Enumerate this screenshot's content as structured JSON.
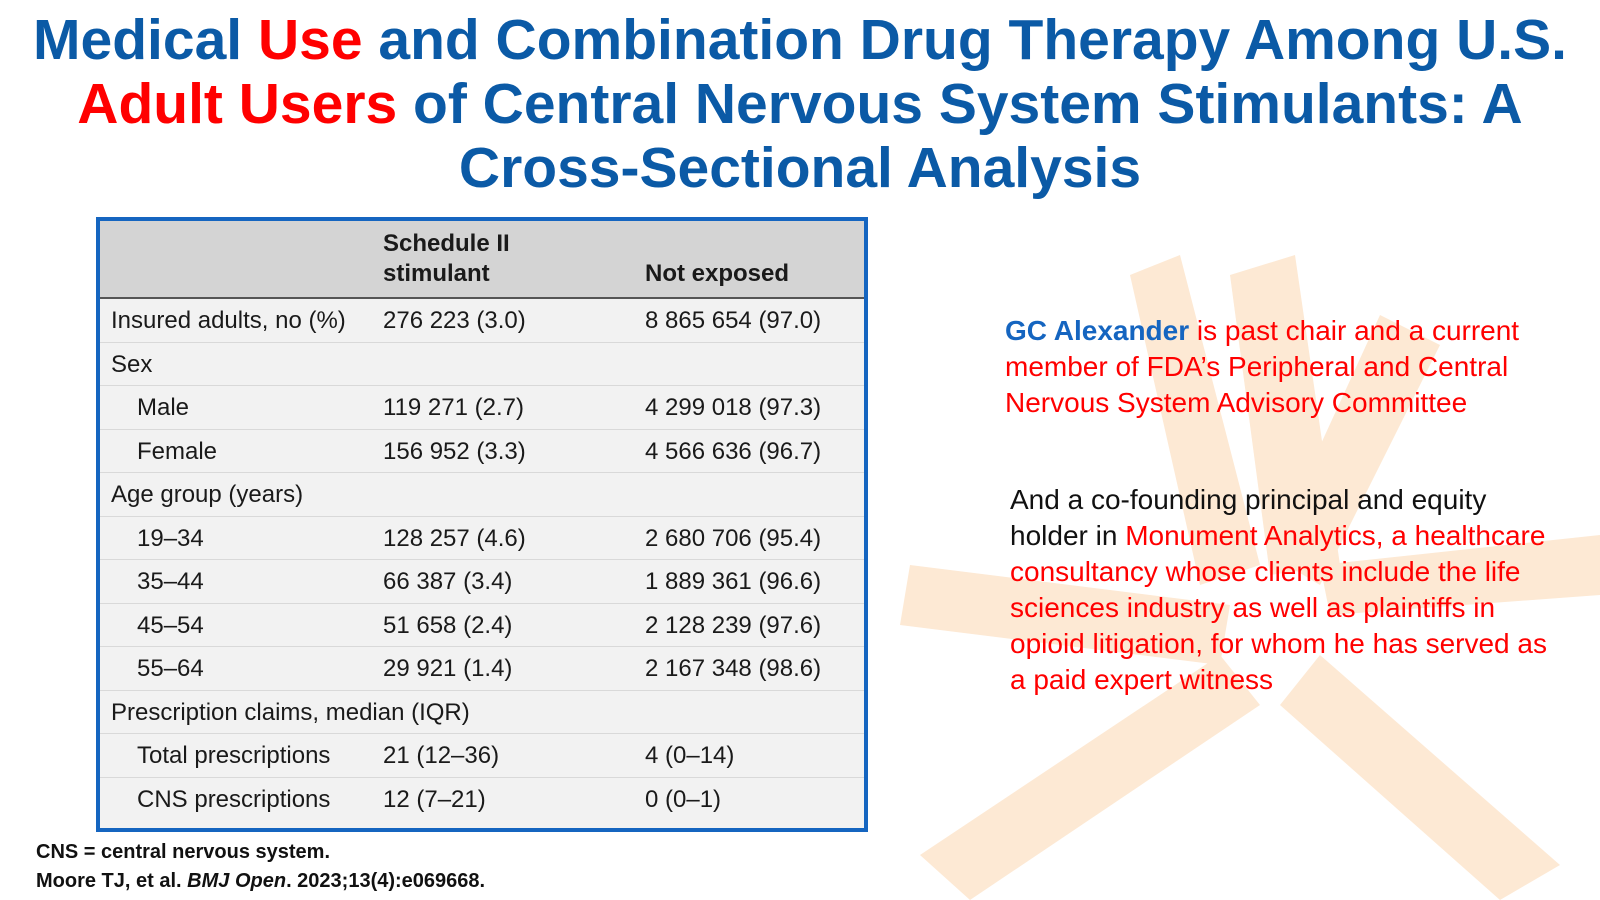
{
  "title": {
    "part1": "Medical ",
    "part2_highlight": "Use",
    "part3": " and Combination Drug Therapy Among U.S. ",
    "part4_highlight": "Adult Users",
    "part5": " of Central Nervous System Stimulants: A Cross-Sectional Analysis"
  },
  "table": {
    "col1_header": "Schedule II stimulant",
    "col2_header": "Not exposed",
    "rows": [
      {
        "label": "Insured adults, no (%)",
        "c1": "276 223 (3.0)",
        "c2": "8 865 654 (97.0)"
      },
      {
        "label": "Sex",
        "c1": "",
        "c2": ""
      },
      {
        "label": "Male",
        "c1": "119 271 (2.7)",
        "c2": "4 299 018 (97.3)"
      },
      {
        "label": "Female",
        "c1": "156 952 (3.3)",
        "c2": "4 566 636 (96.7)"
      },
      {
        "label": "Age group (years)",
        "c1": "",
        "c2": ""
      },
      {
        "label": "19–34",
        "c1": "128 257 (4.6)",
        "c2": "2 680 706 (95.4)"
      },
      {
        "label": "35–44",
        "c1": "66 387 (3.4)",
        "c2": "1 889 361 (96.6)"
      },
      {
        "label": "45–54",
        "c1": "51 658 (2.4)",
        "c2": "2 128 239 (97.6)"
      },
      {
        "label": "55–64",
        "c1": "29 921 (1.4)",
        "c2": "2 167 348 (98.6)"
      },
      {
        "label": "Prescription claims, median (IQR)",
        "c1": "",
        "c2": ""
      },
      {
        "label": "Total prescriptions",
        "c1": "21 (12–36)",
        "c2": "4 (0–14)"
      },
      {
        "label": "CNS prescriptions",
        "c1": "12 (7–21)",
        "c2": "0 (0–1)"
      }
    ]
  },
  "footnote": {
    "abbrev": "CNS = central nervous system.",
    "citation_authors": "Moore TJ, et al. ",
    "citation_journal": "BMJ Open",
    "citation_rest": ". 2023;13(4):e069668."
  },
  "side_text": {
    "name": "GC Alexander",
    "para1_rest": " is past chair and a current member of FDA’s Peripheral and Central Nervous System Advisory Committee",
    "para2_black": "And a co-founding principal and equity holder in ",
    "para2_red": "Monument Analytics, a healthcare consultancy whose clients include the life sciences industry as well as plaintiffs in opioid litigation, for whom he has served as a paid expert witness"
  },
  "colors": {
    "title_blue": "#0b5aa6",
    "highlight_red": "#ff0000",
    "table_border_blue": "#1565c0",
    "watermark_orange": "#fde9d4"
  },
  "icons": [
    "watermark-star-logo"
  ]
}
